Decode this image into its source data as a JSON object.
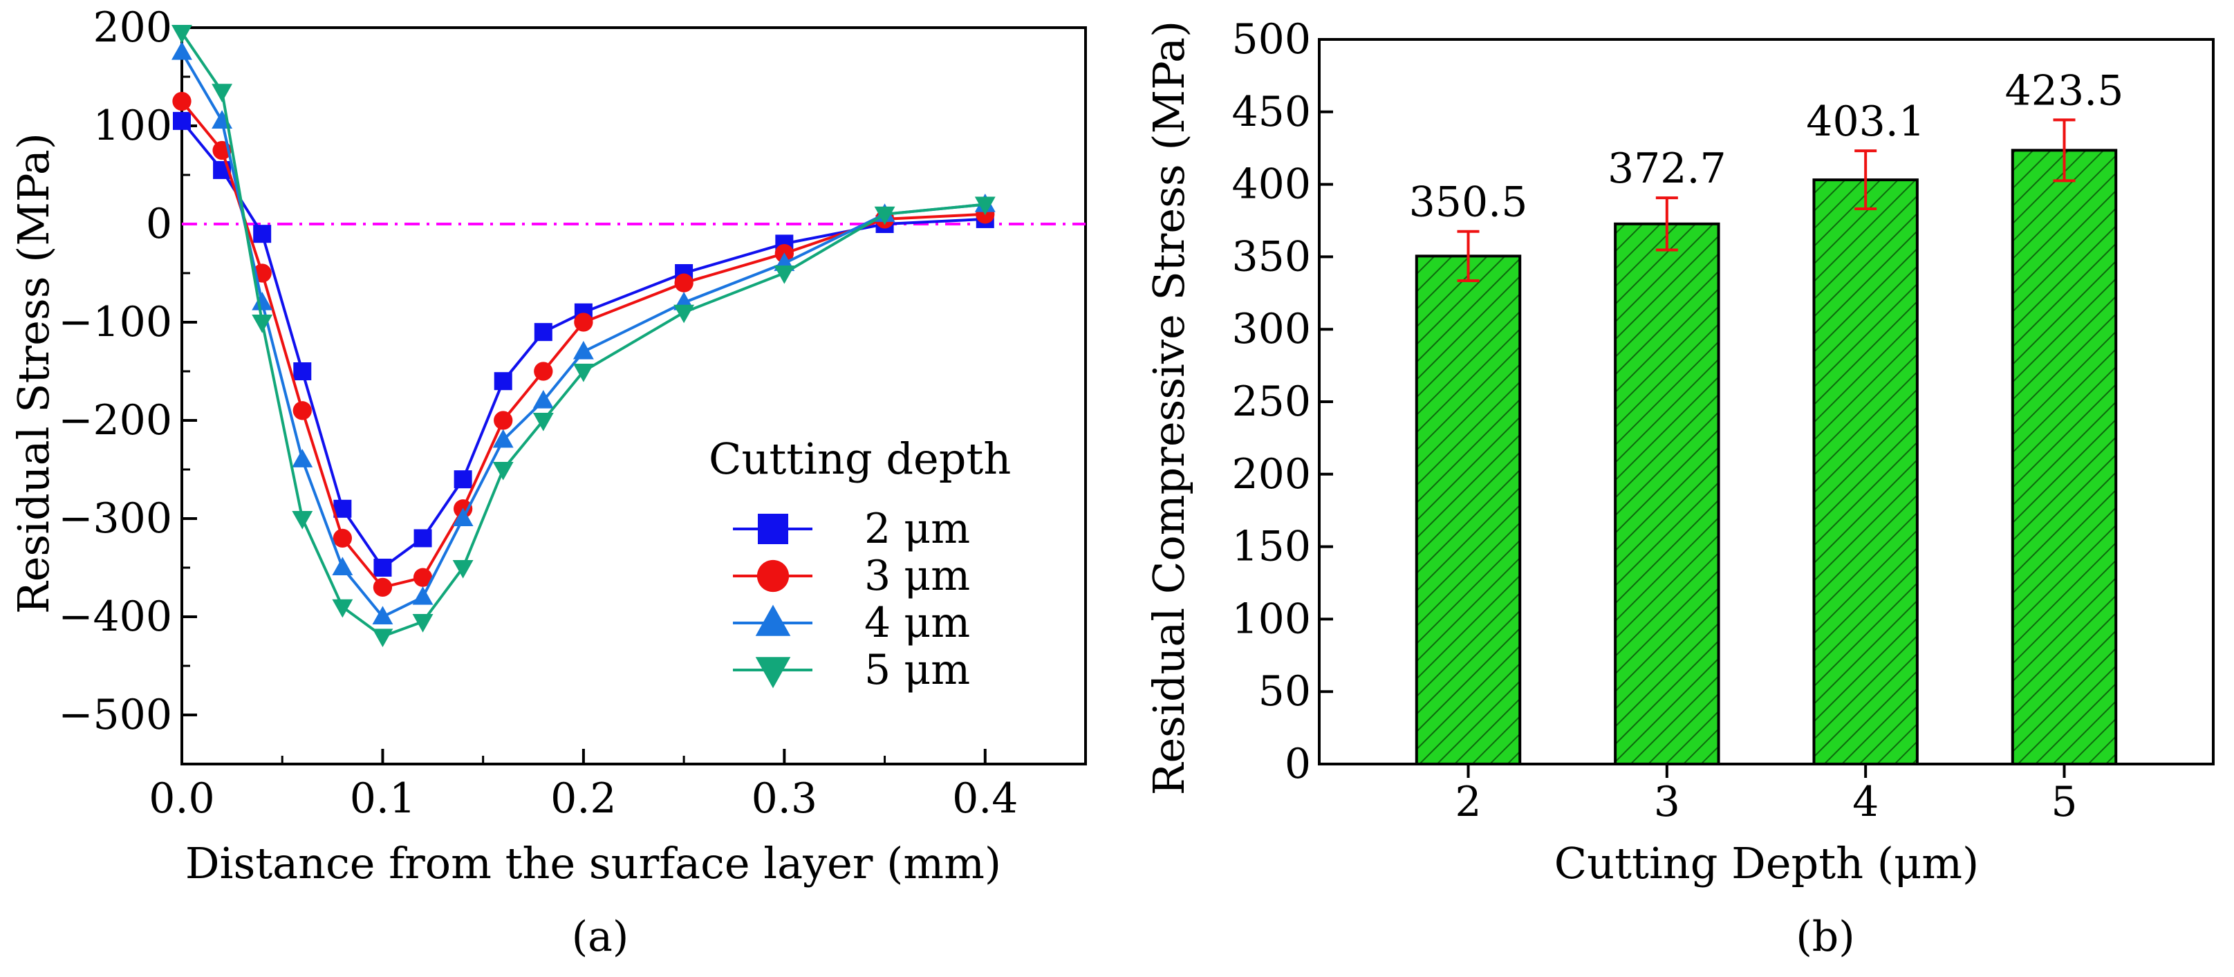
{
  "chart_data": [
    {
      "type": "line",
      "panel_label": "(a)",
      "xlabel": "Distance from the surface layer (mm)",
      "ylabel": "Residual Stress (MPa)",
      "xlim": [
        0.0,
        0.45
      ],
      "ylim": [
        -550,
        200
      ],
      "xticks": [
        0.0,
        0.1,
        0.2,
        0.3,
        0.4
      ],
      "xtick_labels": [
        "0.0",
        "0.1",
        "0.2",
        "0.3",
        "0.4"
      ],
      "yticks": [
        200,
        100,
        0,
        -100,
        -200,
        -300,
        -400,
        -500
      ],
      "ytick_labels": [
        "200",
        "100",
        "0",
        "−100",
        "−200",
        "−300",
        "−400",
        "−500"
      ],
      "reference_line": {
        "y": 0,
        "color": "#ff00ff",
        "style": "dash-dot"
      },
      "legend_title": "Cutting depth",
      "legend_position": "lower-right",
      "series": [
        {
          "name": "2 μm",
          "color": "#1010ee",
          "marker": "square",
          "x": [
            0.0,
            0.02,
            0.04,
            0.06,
            0.08,
            0.1,
            0.12,
            0.14,
            0.16,
            0.18,
            0.2,
            0.25,
            0.3,
            0.35,
            0.4
          ],
          "y": [
            105,
            55,
            -10,
            -150,
            -290,
            -350,
            -320,
            -260,
            -160,
            -110,
            -90,
            -50,
            -20,
            0,
            5
          ]
        },
        {
          "name": "3 μm",
          "color": "#ee1111",
          "marker": "circle",
          "x": [
            0.0,
            0.02,
            0.04,
            0.06,
            0.08,
            0.1,
            0.12,
            0.14,
            0.16,
            0.18,
            0.2,
            0.25,
            0.3,
            0.35,
            0.4
          ],
          "y": [
            125,
            75,
            -50,
            -190,
            -320,
            -370,
            -360,
            -290,
            -200,
            -150,
            -100,
            -60,
            -30,
            5,
            10
          ]
        },
        {
          "name": "4 μm",
          "color": "#1a75e0",
          "marker": "triangle-up",
          "x": [
            0.0,
            0.02,
            0.04,
            0.06,
            0.08,
            0.1,
            0.12,
            0.14,
            0.16,
            0.18,
            0.2,
            0.25,
            0.3,
            0.35,
            0.4
          ],
          "y": [
            175,
            105,
            -80,
            -240,
            -350,
            -400,
            -380,
            -300,
            -220,
            -180,
            -130,
            -80,
            -40,
            10,
            20
          ]
        },
        {
          "name": "5 μm",
          "color": "#12a77a",
          "marker": "triangle-down",
          "x": [
            0.0,
            0.02,
            0.04,
            0.06,
            0.08,
            0.1,
            0.12,
            0.14,
            0.16,
            0.18,
            0.2,
            0.25,
            0.3,
            0.35,
            0.4
          ],
          "y": [
            195,
            135,
            -100,
            -300,
            -390,
            -420,
            -405,
            -350,
            -250,
            -200,
            -150,
            -90,
            -50,
            10,
            20
          ]
        }
      ]
    },
    {
      "type": "bar",
      "panel_label": "(b)",
      "xlabel": "Cutting Depth (μm)",
      "ylabel": "Residual Compressive Stress (MPa)",
      "ylim": [
        0,
        500
      ],
      "yticks": [
        0,
        50,
        100,
        150,
        200,
        250,
        300,
        350,
        400,
        450,
        500
      ],
      "categories": [
        "2",
        "3",
        "4",
        "5"
      ],
      "values": [
        350.5,
        372.7,
        403.1,
        423.5
      ],
      "value_labels": [
        "350.5",
        "372.7",
        "403.1",
        "423.5"
      ],
      "errors": [
        17,
        18,
        20,
        21
      ],
      "bar_color": "#1fd11f",
      "error_color": "#ee1111"
    }
  ]
}
